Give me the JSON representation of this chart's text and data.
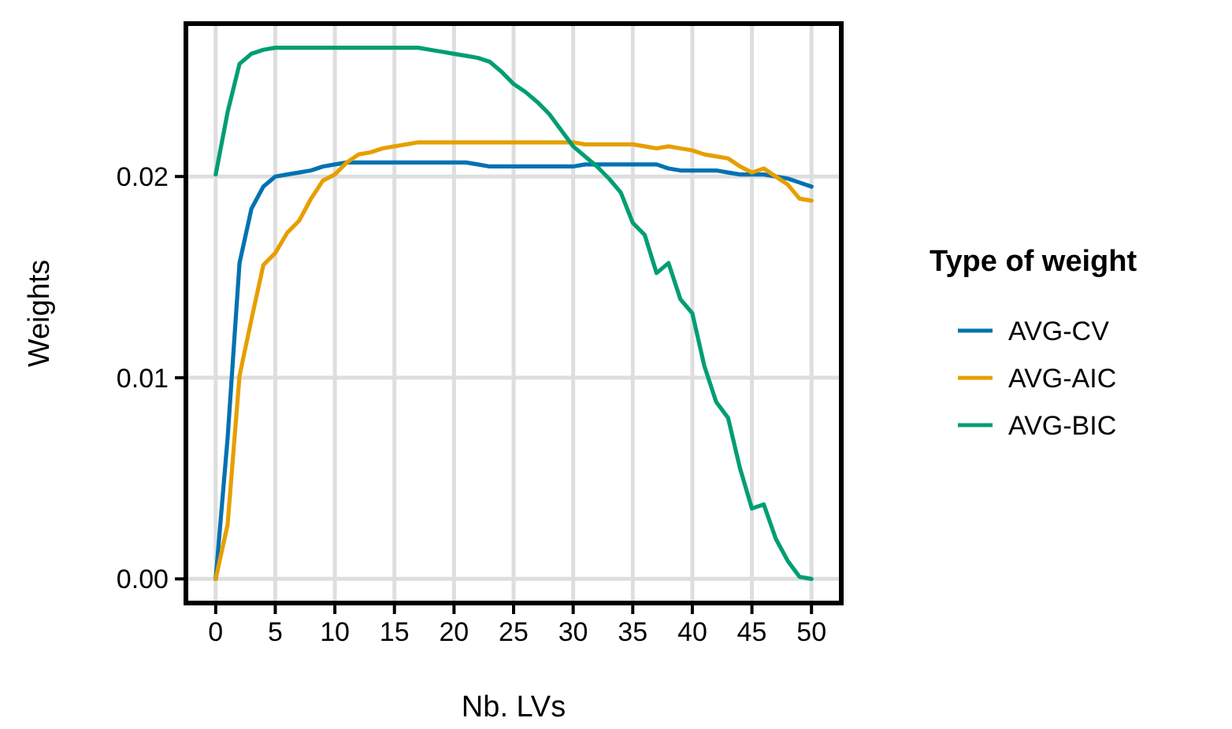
{
  "chart_data": {
    "type": "line",
    "xlabel": "Nb. LVs",
    "ylabel": "Weights",
    "legend_title": "Type of weight",
    "legend": "right",
    "grid": true,
    "line_style": "solid",
    "marker": "none",
    "x": [
      0,
      1,
      2,
      3,
      4,
      5,
      6,
      7,
      8,
      9,
      10,
      11,
      12,
      13,
      14,
      15,
      16,
      17,
      18,
      19,
      20,
      21,
      22,
      23,
      24,
      25,
      26,
      27,
      28,
      29,
      30,
      31,
      32,
      33,
      34,
      35,
      36,
      37,
      38,
      39,
      40,
      41,
      42,
      43,
      44,
      45,
      46,
      47,
      48,
      49,
      50
    ],
    "xlim": [
      -2.5,
      52.5
    ],
    "xticks": [
      0,
      5,
      10,
      15,
      20,
      25,
      30,
      35,
      40,
      45,
      50
    ],
    "ylim": [
      -0.0012,
      0.0276
    ],
    "yticks": [
      {
        "value": 0,
        "label": "0.00"
      },
      {
        "value": 0.01,
        "label": "0.01"
      },
      {
        "value": 0.02,
        "label": "0.02"
      }
    ],
    "series": [
      {
        "name": "AVG-CV",
        "color": "#0072b2",
        "values": [
          0,
          0.007,
          0.0157,
          0.0184,
          0.0195,
          0.02,
          0.0201,
          0.0202,
          0.0203,
          0.0205,
          0.0206,
          0.0207,
          0.0207,
          0.0207,
          0.0207,
          0.0207,
          0.0207,
          0.0207,
          0.0207,
          0.0207,
          0.0207,
          0.0207,
          0.0206,
          0.0205,
          0.0205,
          0.0205,
          0.0205,
          0.0205,
          0.0205,
          0.0205,
          0.0205,
          0.0206,
          0.0206,
          0.0206,
          0.0206,
          0.0206,
          0.0206,
          0.0206,
          0.0204,
          0.0203,
          0.0203,
          0.0203,
          0.0203,
          0.0202,
          0.0201,
          0.0201,
          0.0201,
          0.02,
          0.0199,
          0.0197,
          0.0195
        ]
      },
      {
        "name": "AVG-AIC",
        "color": "#e69f00",
        "values": [
          0,
          0.0027,
          0.0101,
          0.0129,
          0.0156,
          0.0162,
          0.0172,
          0.0178,
          0.0189,
          0.0198,
          0.0201,
          0.0207,
          0.0211,
          0.0212,
          0.0214,
          0.0215,
          0.0216,
          0.0217,
          0.0217,
          0.0217,
          0.0217,
          0.0217,
          0.0217,
          0.0217,
          0.0217,
          0.0217,
          0.0217,
          0.0217,
          0.0217,
          0.0217,
          0.0217,
          0.0216,
          0.0216,
          0.0216,
          0.0216,
          0.0216,
          0.0215,
          0.0214,
          0.0215,
          0.0214,
          0.0213,
          0.0211,
          0.021,
          0.0209,
          0.0205,
          0.0202,
          0.0204,
          0.02,
          0.0196,
          0.0189,
          0.0188
        ]
      },
      {
        "name": "AVG-BIC",
        "color": "#009e73",
        "values": [
          0.0201,
          0.0232,
          0.0256,
          0.0261,
          0.0263,
          0.0264,
          0.0264,
          0.0264,
          0.0264,
          0.0264,
          0.0264,
          0.0264,
          0.0264,
          0.0264,
          0.0264,
          0.0264,
          0.0264,
          0.0264,
          0.0263,
          0.0262,
          0.0261,
          0.026,
          0.0259,
          0.0257,
          0.0252,
          0.0246,
          0.0242,
          0.0237,
          0.0231,
          0.0223,
          0.0215,
          0.021,
          0.0205,
          0.0199,
          0.0192,
          0.0177,
          0.0171,
          0.0152,
          0.0157,
          0.0139,
          0.0132,
          0.0106,
          0.0088,
          0.008,
          0.0055,
          0.0035,
          0.0037,
          0.002,
          0.0009,
          0.0001,
          0
        ]
      }
    ]
  }
}
